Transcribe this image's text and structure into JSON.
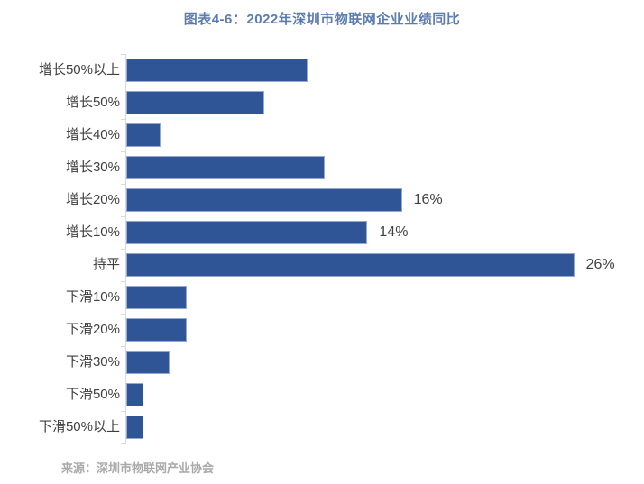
{
  "header": {
    "title": "图表4-6：2022年深圳市物联网企业业绩同比"
  },
  "chart_data": {
    "type": "bar",
    "orientation": "horizontal",
    "title": "图表4-6：2022年深圳市物联网企业业绩同比",
    "categories": [
      "增长50%以上",
      "增长50%",
      "增长40%",
      "增长30%",
      "增长20%",
      "增长10%",
      "持平",
      "下滑10%",
      "下滑20%",
      "下滑30%",
      "下滑50%",
      "下滑50%以上"
    ],
    "values": [
      10.5,
      8,
      2,
      11.5,
      16,
      14,
      26,
      3.5,
      3.5,
      2.5,
      1,
      1
    ],
    "data_labels": [
      null,
      null,
      null,
      null,
      "16%",
      "14%",
      "26%",
      null,
      null,
      null,
      null,
      null
    ],
    "xlabel": "",
    "ylabel": "",
    "xlim": [
      0,
      29
    ],
    "grid": false,
    "legend": false,
    "bar_color": "#2F5597"
  },
  "colors": {
    "bar_fill": "#2F5597",
    "bar_border": "#93A9D1",
    "title_text": "#5B7CB0",
    "category_text": "#3F3F3F",
    "value_text": "#404040",
    "axis_line": "#D9D9D9",
    "source_text": "#A9A9A9",
    "background": "#FFFFFF"
  },
  "footer": {
    "source": "来源：深圳市物联网产业协会"
  }
}
